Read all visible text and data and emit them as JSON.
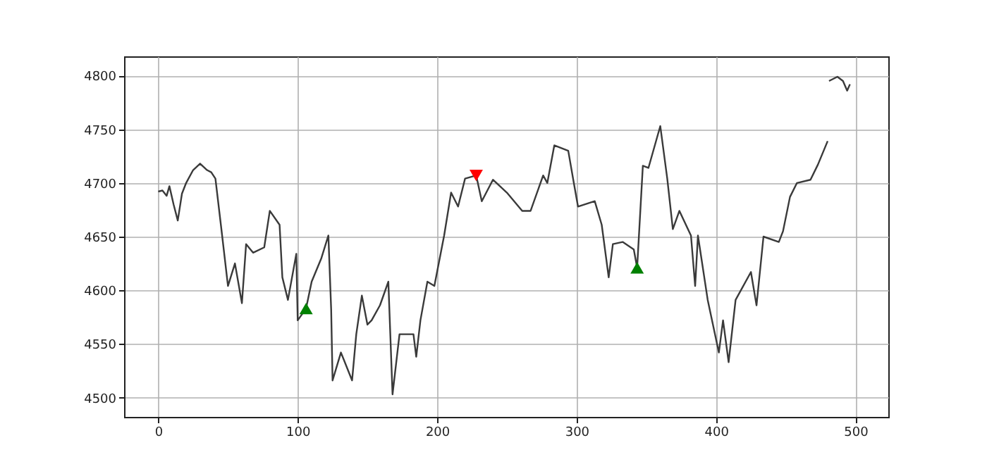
{
  "chart_data": {
    "type": "line",
    "grid": true,
    "xlim": [
      -24.5,
      523.5
    ],
    "ylim": [
      4482,
      4818
    ],
    "xticks": [
      0,
      100,
      200,
      300,
      400,
      500
    ],
    "yticks": [
      4500,
      4550,
      4600,
      4650,
      4700,
      4750,
      4800
    ],
    "series": [
      {
        "color": "#3a3a3a",
        "marker": "none",
        "x": [
          0,
          3,
          6,
          8,
          11,
          14,
          17,
          20,
          25,
          30,
          35,
          38,
          41,
          45,
          50,
          55,
          60,
          63,
          68,
          76,
          80,
          87,
          89,
          93,
          99,
          100,
          106,
          110,
          117,
          122,
          124,
          125,
          131,
          139,
          142,
          146,
          150,
          153,
          159,
          165,
          168,
          173,
          183,
          185,
          188,
          193,
          198,
          205,
          210,
          215,
          220,
          228,
          232,
          240,
          250,
          261,
          267,
          276,
          279,
          284,
          294,
          298,
          301,
          313,
          318,
          323,
          326,
          333,
          341,
          343.4,
          347.5,
          351.5,
          360,
          365,
          369,
          373.7,
          382,
          385,
          387,
          394,
          402,
          405,
          409,
          414,
          425,
          429,
          434,
          445,
          448,
          453,
          458,
          467.7,
          473,
          480,
          480.5,
          481,
          487,
          491,
          494,
          496
        ],
        "values": [
          4692,
          4693,
          4688,
          4697,
          4680,
          4665,
          4690,
          4700,
          4712,
          4718,
          4712,
          4710,
          4704,
          4660,
          4604,
          4625,
          4588,
          4643,
          4635,
          4640,
          4674,
          4661,
          4612,
          4591,
          4634,
          4572,
          4583,
          4608,
          4630,
          4651,
          4582,
          4516,
          4542,
          4516,
          4559,
          4595,
          4568,
          4572,
          4586,
          4608,
          4503,
          4559,
          4559,
          4538,
          4572,
          4608,
          4604,
          4651,
          4691,
          4678,
          4704,
          4707,
          4683,
          4703,
          4691,
          4674,
          4674,
          4707,
          4700,
          4735,
          4730,
          4700,
          4678,
          4683,
          4661,
          4612,
          4643,
          4645,
          4638,
          4621,
          4716,
          4714,
          4753,
          4704,
          4657,
          4674,
          4651,
          4604,
          4651,
          4591,
          4542,
          4572,
          4533,
          4591,
          4617,
          4586,
          4650,
          4645,
          4655,
          4687,
          4700,
          4703,
          4717,
          4739,
          null,
          4795,
          4799,
          4795,
          4786,
          4792
        ]
      },
      {
        "type": "scatter",
        "color": "#008000",
        "marker": "triangle",
        "x": [
          106,
          343.4
        ],
        "values": [
          4583,
          4621
        ]
      },
      {
        "type": "scatter",
        "color": "#ff0000",
        "marker": "triangle-down",
        "x": [
          228
        ],
        "values": [
          4707
        ]
      }
    ]
  }
}
